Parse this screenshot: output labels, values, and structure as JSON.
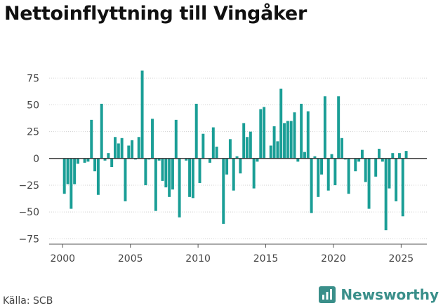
{
  "header": {
    "title": "Nettoinflyttning till Vingåker"
  },
  "footer": {
    "source": "Källa: SCB",
    "brand": "Newsworthy"
  },
  "colors": {
    "bar": "#1a9e96",
    "brand": "#3a8f8a",
    "zero_line": "#333333",
    "grid": "#d0d0d0"
  },
  "chart_data": {
    "type": "bar",
    "title": "Nettoinflyttning till Vingåker",
    "xlabel": "",
    "ylabel": "",
    "ylim": [
      -80,
      85
    ],
    "xlim": [
      1999,
      2026.9
    ],
    "yticks": [
      75,
      50,
      25,
      0,
      -25,
      -50,
      -75
    ],
    "ytick_labels": [
      "75",
      "50",
      "25",
      "0",
      "−25",
      "−50",
      "−75"
    ],
    "xticks": [
      2000,
      2005,
      2010,
      2015,
      2020,
      2025
    ],
    "xtick_labels": [
      "2000",
      "2005",
      "2010",
      "2015",
      "2020",
      "2025"
    ],
    "grid": true,
    "x": [
      2000.125,
      2000.375,
      2000.625,
      2000.875,
      2001.125,
      2001.375,
      2001.625,
      2001.875,
      2002.125,
      2002.375,
      2002.625,
      2002.875,
      2003.125,
      2003.375,
      2003.625,
      2003.875,
      2004.125,
      2004.375,
      2004.625,
      2004.875,
      2005.125,
      2005.375,
      2005.625,
      2005.875,
      2006.125,
      2006.375,
      2006.625,
      2006.875,
      2007.125,
      2007.375,
      2007.625,
      2007.875,
      2008.125,
      2008.375,
      2008.625,
      2008.875,
      2009.125,
      2009.375,
      2009.625,
      2009.875,
      2010.125,
      2010.375,
      2010.625,
      2010.875,
      2011.125,
      2011.375,
      2011.625,
      2011.875,
      2012.125,
      2012.375,
      2012.625,
      2012.875,
      2013.125,
      2013.375,
      2013.625,
      2013.875,
      2014.125,
      2014.375,
      2014.625,
      2014.875,
      2015.125,
      2015.375,
      2015.625,
      2015.875,
      2016.125,
      2016.375,
      2016.625,
      2016.875,
      2017.125,
      2017.375,
      2017.625,
      2017.875,
      2018.125,
      2018.375,
      2018.625,
      2018.875,
      2019.125,
      2019.375,
      2019.625,
      2019.875,
      2020.125,
      2020.375,
      2020.625,
      2020.875,
      2021.125,
      2021.375,
      2021.625,
      2021.875,
      2022.125,
      2022.375,
      2022.625,
      2022.875,
      2023.125,
      2023.375,
      2023.625,
      2023.875,
      2024.125,
      2024.375,
      2024.625,
      2024.875,
      2025.125,
      2025.375
    ],
    "values": [
      -33,
      -24,
      -47,
      -24,
      -5,
      0,
      -4,
      -3,
      36,
      -12,
      -34,
      51,
      -2,
      5,
      -8,
      20,
      14,
      19,
      -40,
      12,
      17,
      -1,
      20,
      82,
      -25,
      -1,
      37,
      -49,
      -2,
      -21,
      -27,
      -36,
      -29,
      36,
      -55,
      0,
      -2,
      -36,
      -37,
      51,
      -23,
      23,
      0,
      -4,
      29,
      11,
      0,
      -61,
      -15,
      18,
      -30,
      2,
      -14,
      33,
      20,
      25,
      -28,
      -3,
      46,
      48,
      0,
      12,
      30,
      16,
      65,
      33,
      35,
      35,
      43,
      -3,
      51,
      6,
      44,
      -51,
      2,
      -36,
      -15,
      58,
      -30,
      4,
      -25,
      58,
      19,
      -1,
      -33,
      0,
      -12,
      -3,
      8,
      -22,
      -47,
      0,
      -17,
      9,
      -3,
      -67,
      -28,
      5,
      -40,
      5,
      -54,
      7
    ]
  }
}
